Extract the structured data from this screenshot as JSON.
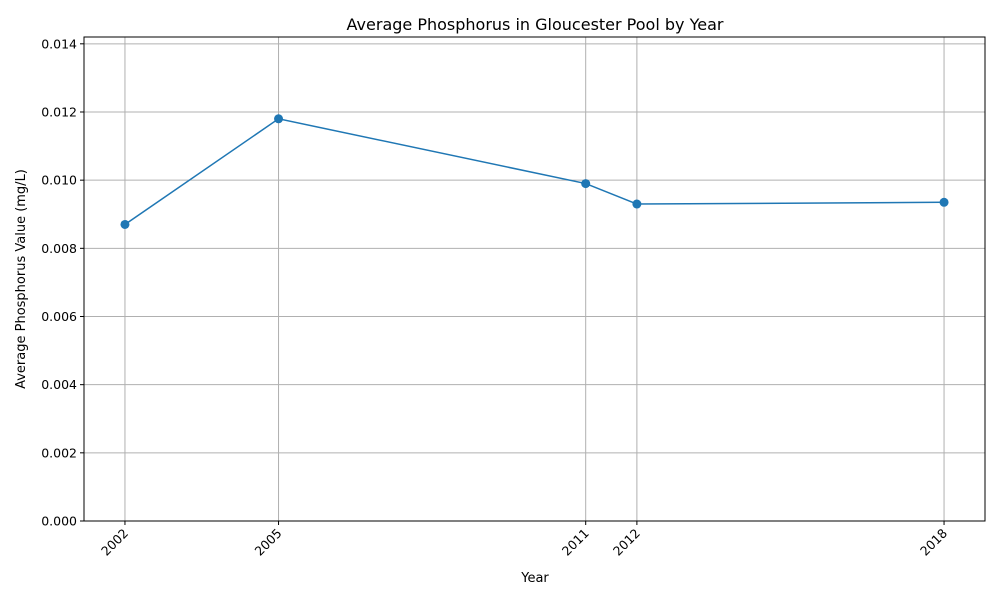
{
  "chart_data": {
    "type": "line",
    "title": "Average Phosphorus in Gloucester Pool by Year",
    "xlabel": "Year",
    "ylabel": "Average Phosphorus Value (mg/L)",
    "x": [
      2002,
      2005,
      2011,
      2012,
      2018
    ],
    "x_tick_labels": [
      "2002",
      "2005",
      "2011",
      "2012",
      "2018"
    ],
    "xlim": [
      2001.2,
      2018.8
    ],
    "series": [
      {
        "values": [
          0.0087,
          0.0118,
          0.0099,
          0.0093,
          0.00935
        ]
      }
    ],
    "ylim": [
      0,
      0.0142
    ],
    "y_ticks": [
      0,
      0.002,
      0.004,
      0.006,
      0.008,
      0.01,
      0.012,
      0.014
    ],
    "y_tick_labels": [
      "0.000",
      "0.002",
      "0.004",
      "0.006",
      "0.008",
      "0.010",
      "0.012",
      "0.014"
    ],
    "grid": true,
    "marker": "circle",
    "color": "#1f77b4"
  }
}
